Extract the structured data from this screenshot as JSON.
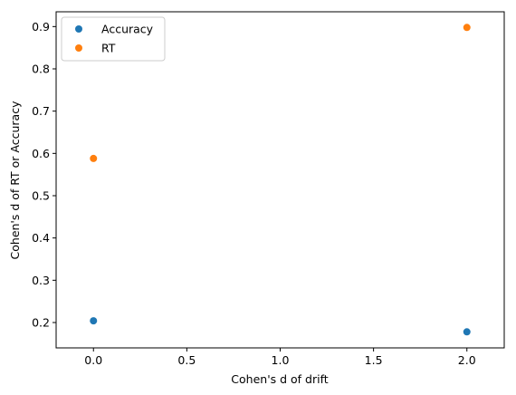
{
  "chart_data": {
    "type": "scatter",
    "title": "",
    "xlabel": "Cohen's d of drift",
    "ylabel": "Cohen's d of RT or Accuracy",
    "xlim": [
      -0.2,
      2.2
    ],
    "ylim": [
      0.14,
      0.935
    ],
    "xticks": [
      "0.0",
      "0.5",
      "1.0",
      "1.5",
      "2.0"
    ],
    "yticks": [
      "0.2",
      "0.3",
      "0.4",
      "0.5",
      "0.6",
      "0.7",
      "0.8",
      "0.9"
    ],
    "grid": false,
    "legend_position": "top-left",
    "series": [
      {
        "name": "Accuracy",
        "color": "#1f77b4",
        "points": [
          {
            "x": 0.0,
            "y": 0.204
          },
          {
            "x": 2.0,
            "y": 0.178
          }
        ]
      },
      {
        "name": "RT",
        "color": "#ff7f0e",
        "points": [
          {
            "x": 0.0,
            "y": 0.588
          },
          {
            "x": 2.0,
            "y": 0.898
          }
        ]
      }
    ]
  }
}
